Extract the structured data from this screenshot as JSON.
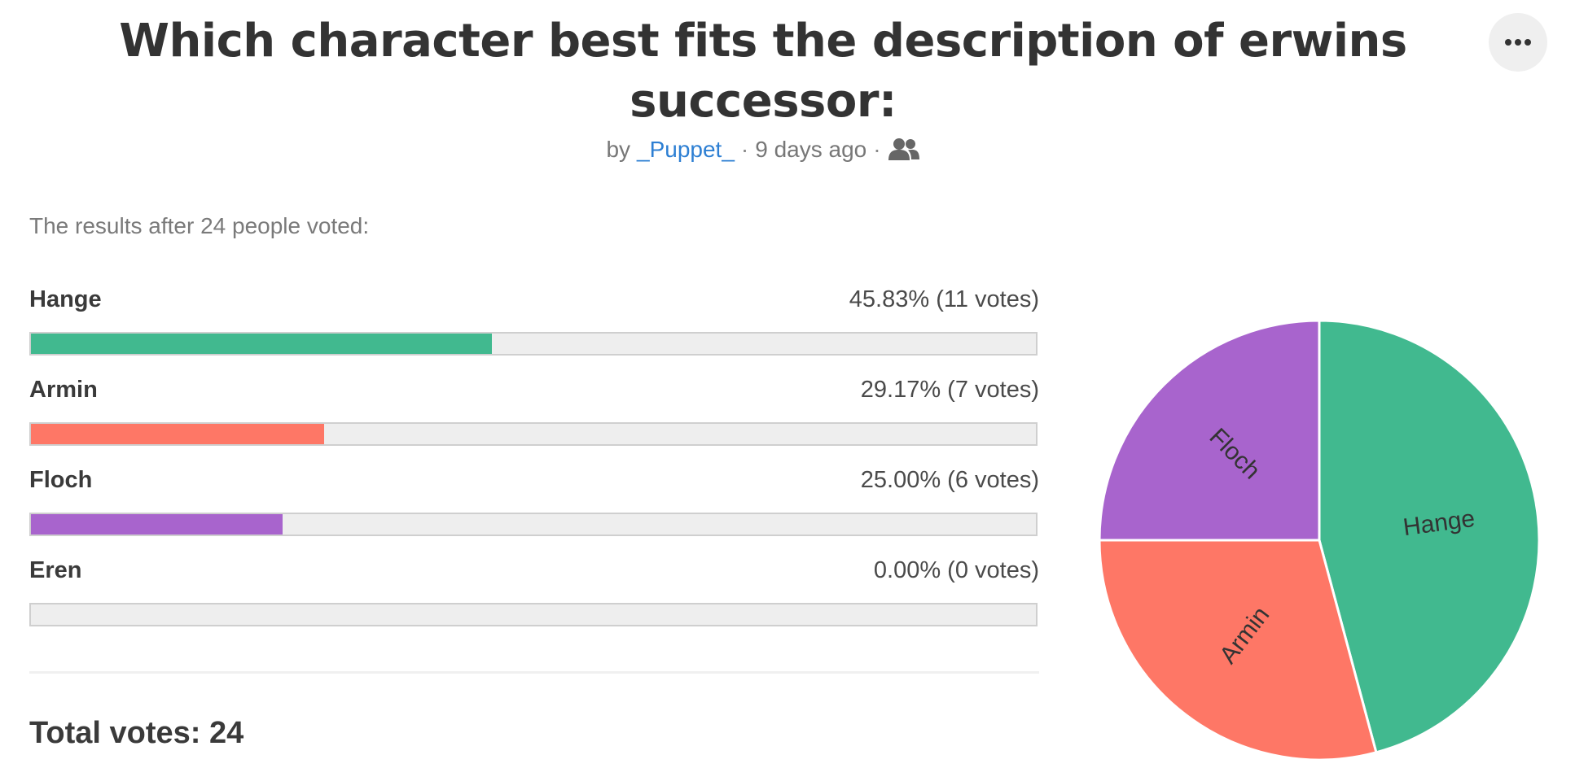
{
  "poll": {
    "title": "Which character best fits the description of erwins successor:",
    "byline_prefix": "by",
    "author": "_Puppet_",
    "time_ago": "9 days ago",
    "separator": "·",
    "summary": "The results after 24 people voted:",
    "total_label": "Total votes: 24"
  },
  "options": [
    {
      "name": "Hange",
      "result": "45.83% (11 votes)",
      "percent": 45.83,
      "color": "#41b98f"
    },
    {
      "name": "Armin",
      "result": "29.17% (7 votes)",
      "percent": 29.17,
      "color": "#fe7766"
    },
    {
      "name": "Floch",
      "result": "25.00% (6 votes)",
      "percent": 25.0,
      "color": "#a864cd"
    },
    {
      "name": "Eren",
      "result": "0.00% (0 votes)",
      "percent": 0.0,
      "color": "#cccccc"
    }
  ],
  "icons": {
    "people": "people-icon",
    "more": "more-icon"
  },
  "chart_data": {
    "type": "pie",
    "title": "",
    "slices": [
      {
        "label": "Hange",
        "value": 11,
        "color": "#41b98f"
      },
      {
        "label": "Armin",
        "value": 7,
        "color": "#fe7766"
      },
      {
        "label": "Floch",
        "value": 6,
        "color": "#a864cd"
      }
    ]
  }
}
